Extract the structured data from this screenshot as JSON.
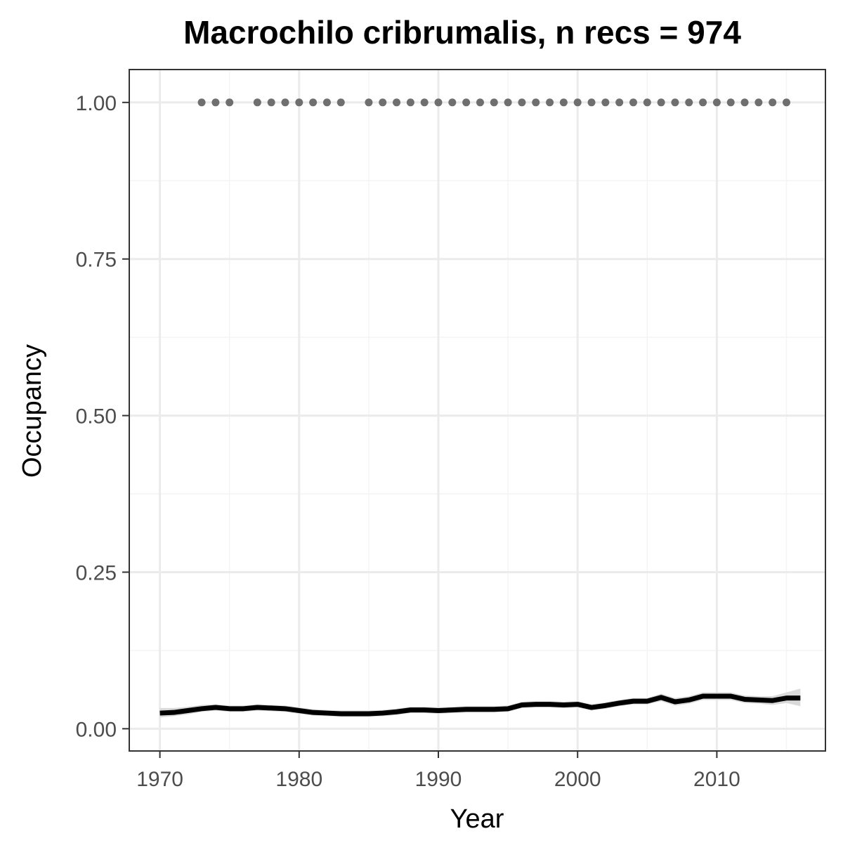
{
  "chart_data": {
    "type": "line",
    "title": "Macrochilo cribrumalis, n recs = 974",
    "xlabel": "Year",
    "ylabel": "Occupancy",
    "xlim": [
      1967.8,
      2017.8
    ],
    "ylim": [
      -0.0355,
      1.0525
    ],
    "x_ticks": [
      1970,
      1980,
      1990,
      2000,
      2010
    ],
    "x_tick_labels": [
      "1970",
      "1980",
      "1990",
      "2000",
      "2010"
    ],
    "y_ticks": [
      0,
      0.25,
      0.5,
      0.75,
      1.0
    ],
    "y_tick_labels": [
      "0.00",
      "0.25",
      "0.50",
      "0.75",
      "1.00"
    ],
    "grid": true,
    "legend": "none",
    "colors": {
      "line": "#000000",
      "ribbon": "#d9d9d9",
      "points": "#6f6f6f",
      "panel_border": "#333333",
      "grid_major": "#ebebeb",
      "grid_minor": "#f4f4f4"
    },
    "series": [
      {
        "type": "line_with_ribbon",
        "x": [
          1970,
          1971,
          1972,
          1973,
          1974,
          1975,
          1976,
          1977,
          1978,
          1979,
          1980,
          1981,
          1982,
          1983,
          1984,
          1985,
          1986,
          1987,
          1988,
          1989,
          1990,
          1991,
          1992,
          1993,
          1994,
          1995,
          1996,
          1997,
          1998,
          1999,
          2000,
          2001,
          2002,
          2003,
          2004,
          2005,
          2006,
          2007,
          2008,
          2009,
          2010,
          2011,
          2012,
          2013,
          2014,
          2015,
          2016
        ],
        "y": [
          0.025,
          0.026,
          0.029,
          0.032,
          0.034,
          0.032,
          0.032,
          0.034,
          0.033,
          0.032,
          0.029,
          0.026,
          0.025,
          0.024,
          0.024,
          0.024,
          0.025,
          0.027,
          0.03,
          0.03,
          0.029,
          0.03,
          0.031,
          0.031,
          0.031,
          0.032,
          0.038,
          0.039,
          0.039,
          0.038,
          0.039,
          0.034,
          0.037,
          0.041,
          0.044,
          0.044,
          0.05,
          0.043,
          0.046,
          0.052,
          0.052,
          0.052,
          0.047,
          0.046,
          0.045,
          0.049,
          0.049
        ],
        "lower": [
          0.018,
          0.02,
          0.023,
          0.027,
          0.029,
          0.027,
          0.027,
          0.029,
          0.028,
          0.027,
          0.024,
          0.021,
          0.02,
          0.019,
          0.019,
          0.019,
          0.02,
          0.022,
          0.025,
          0.025,
          0.024,
          0.025,
          0.026,
          0.026,
          0.026,
          0.027,
          0.033,
          0.034,
          0.034,
          0.033,
          0.034,
          0.029,
          0.032,
          0.036,
          0.039,
          0.039,
          0.044,
          0.037,
          0.04,
          0.046,
          0.046,
          0.046,
          0.041,
          0.04,
          0.038,
          0.041,
          0.036
        ],
        "upper": [
          0.033,
          0.033,
          0.035,
          0.038,
          0.039,
          0.037,
          0.037,
          0.039,
          0.038,
          0.037,
          0.034,
          0.031,
          0.03,
          0.029,
          0.029,
          0.029,
          0.03,
          0.032,
          0.035,
          0.035,
          0.034,
          0.035,
          0.036,
          0.036,
          0.036,
          0.037,
          0.043,
          0.044,
          0.044,
          0.043,
          0.044,
          0.039,
          0.042,
          0.046,
          0.049,
          0.049,
          0.056,
          0.049,
          0.052,
          0.058,
          0.058,
          0.058,
          0.053,
          0.052,
          0.052,
          0.058,
          0.064
        ]
      },
      {
        "type": "points",
        "x": [
          1973,
          1974,
          1975,
          1977,
          1978,
          1979,
          1980,
          1981,
          1982,
          1983,
          1985,
          1986,
          1987,
          1988,
          1989,
          1990,
          1991,
          1992,
          1993,
          1994,
          1995,
          1996,
          1997,
          1998,
          1999,
          2000,
          2001,
          2002,
          2003,
          2004,
          2005,
          2006,
          2007,
          2008,
          2009,
          2010,
          2011,
          2012,
          2013,
          2014,
          2015
        ],
        "y": [
          1,
          1,
          1,
          1,
          1,
          1,
          1,
          1,
          1,
          1,
          1,
          1,
          1,
          1,
          1,
          1,
          1,
          1,
          1,
          1,
          1,
          1,
          1,
          1,
          1,
          1,
          1,
          1,
          1,
          1,
          1,
          1,
          1,
          1,
          1,
          1,
          1,
          1,
          1,
          1,
          1
        ]
      }
    ]
  }
}
